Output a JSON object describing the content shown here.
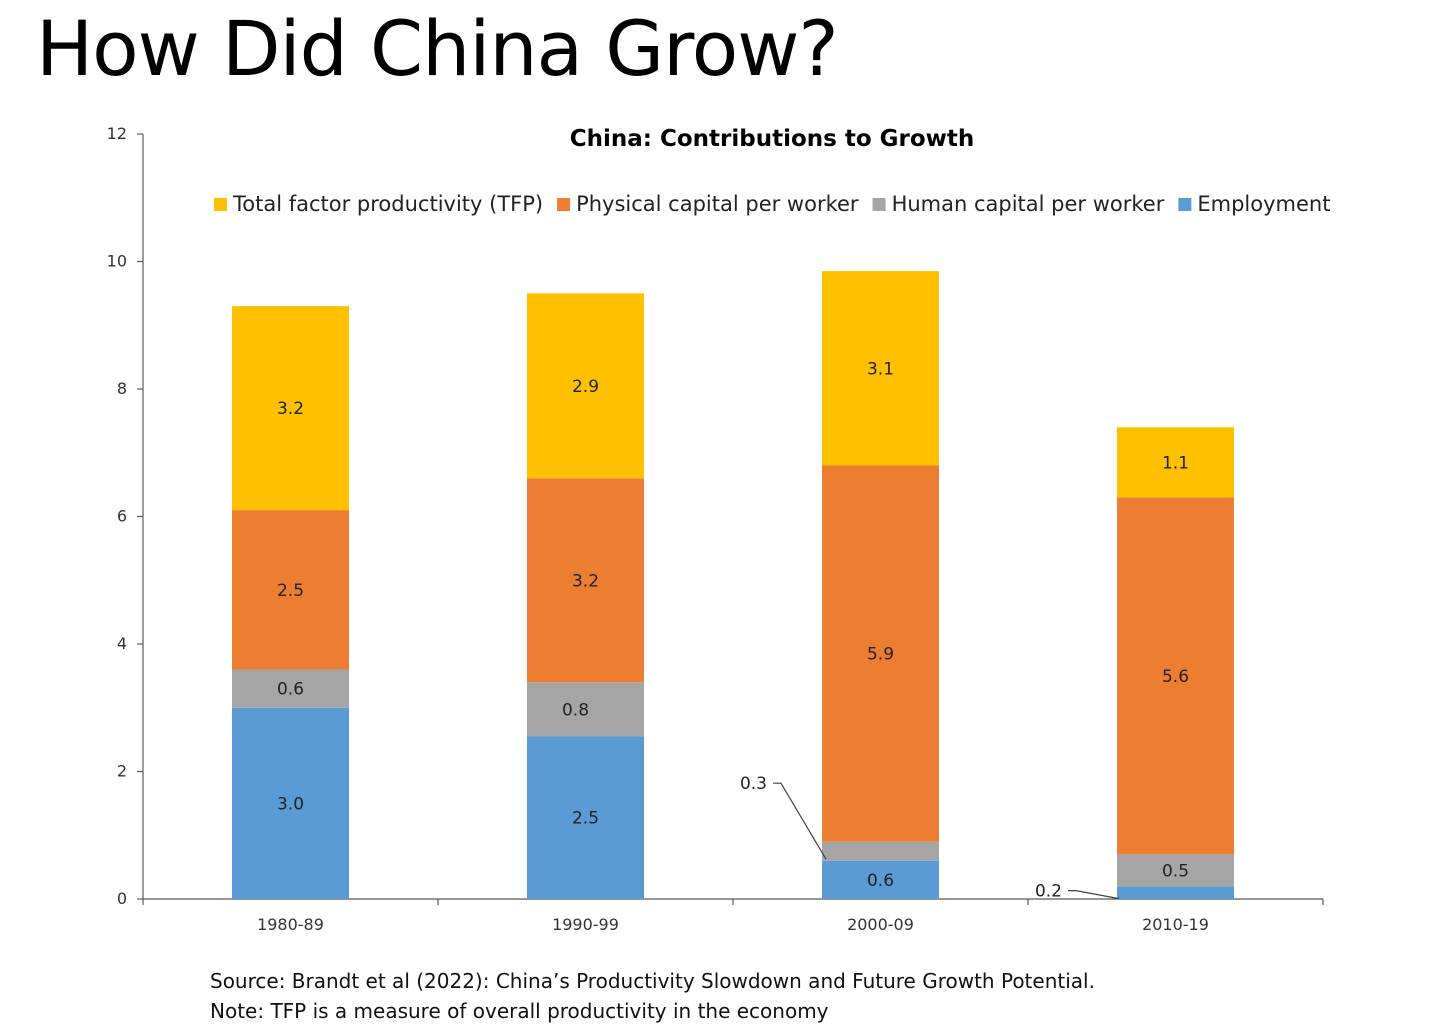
{
  "slide": {
    "title": "How Did China Grow?",
    "source": "Source: Brandt et al (2022): China’s Productivity Slowdown and Future Growth Potential.",
    "note": "Note: TFP is a measure of overall productivity in the economy"
  },
  "chart_data": {
    "type": "bar",
    "stacked": true,
    "title": "China: Contributions to Growth",
    "xlabel": "",
    "ylabel": "",
    "ylim": [
      0,
      12
    ],
    "yticks": [
      0,
      2,
      4,
      6,
      8,
      10,
      12
    ],
    "legend_position": "top",
    "categories": [
      "1980-89",
      "1990-99",
      "2000-09",
      "2010-19"
    ],
    "series": [
      {
        "name": "Employment",
        "color": "#5B9BD5",
        "values": [
          3.0,
          2.55,
          0.6,
          0.2
        ],
        "labels": [
          "3.0",
          "2.5",
          "0.6",
          "0.2"
        ]
      },
      {
        "name": "Human capital per worker",
        "color": "#A5A5A5",
        "values": [
          0.6,
          0.85,
          0.3,
          0.5
        ],
        "labels": [
          "0.6",
          "0.8",
          "0.3",
          "0.5"
        ]
      },
      {
        "name": "Physical capital per worker",
        "color": "#ED7D31",
        "values": [
          2.5,
          3.2,
          5.9,
          5.6
        ],
        "labels": [
          "2.5",
          "3.2",
          "5.9",
          "5.6"
        ]
      },
      {
        "name": "Total factor productivity (TFP)",
        "color": "#FFC000",
        "values": [
          3.2,
          2.9,
          3.05,
          1.1
        ],
        "labels": [
          "3.2",
          "2.9",
          "3.1",
          "1.1"
        ]
      }
    ],
    "legend_order": [
      "Total factor productivity (TFP)",
      "Physical capital per worker",
      "Human capital per worker",
      "Employment"
    ]
  }
}
